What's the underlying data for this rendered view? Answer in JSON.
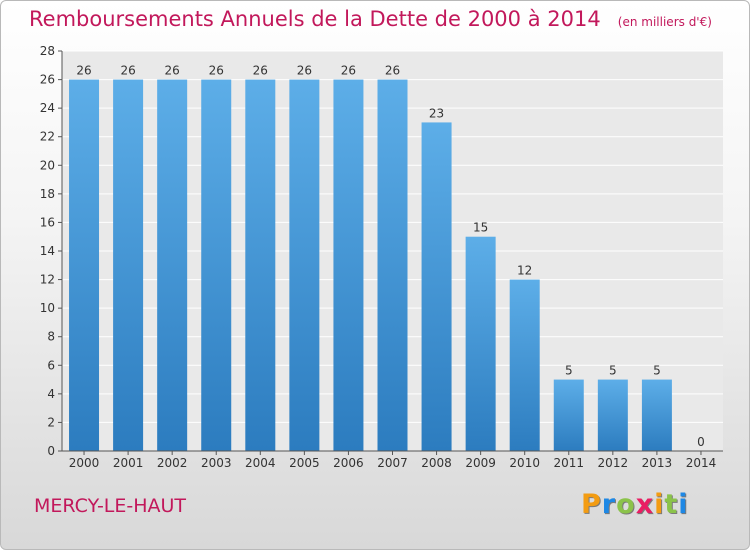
{
  "colors": {
    "accent": "#c2185b",
    "bar_light": "#5daee8",
    "bar_dark": "#2c7cbf",
    "grid": "#ffffff",
    "axis": "#555555"
  },
  "title": {
    "main": "Remboursements Annuels de la Dette de 2000 à 2014",
    "unit": "(en milliers d'€)"
  },
  "commune": "MERCY-LE-HAUT",
  "logo": {
    "letters": [
      "P",
      "r",
      "o",
      "x",
      "i",
      "t",
      "i"
    ],
    "colors": [
      "#f39c12",
      "#1e88e5",
      "#8bc34a",
      "#e91e63",
      "#f39c12",
      "#8bc34a",
      "#1e88e5"
    ]
  },
  "chart_data": {
    "type": "bar",
    "title": "Remboursements Annuels de la Dette de 2000 à 2014",
    "subtitle": "(en milliers d'€)",
    "categories": [
      "2000",
      "2001",
      "2002",
      "2003",
      "2004",
      "2005",
      "2006",
      "2007",
      "2008",
      "2009",
      "2010",
      "2011",
      "2012",
      "2013",
      "2014"
    ],
    "values": [
      26,
      26,
      26,
      26,
      26,
      26,
      26,
      26,
      23,
      15,
      12,
      5,
      5,
      5,
      0
    ],
    "ylim": [
      0,
      28
    ],
    "yticks": [
      0,
      2,
      4,
      6,
      8,
      10,
      12,
      14,
      16,
      18,
      20,
      22,
      24,
      26,
      28
    ],
    "grid": true,
    "legend": "none",
    "data_labels": true
  }
}
